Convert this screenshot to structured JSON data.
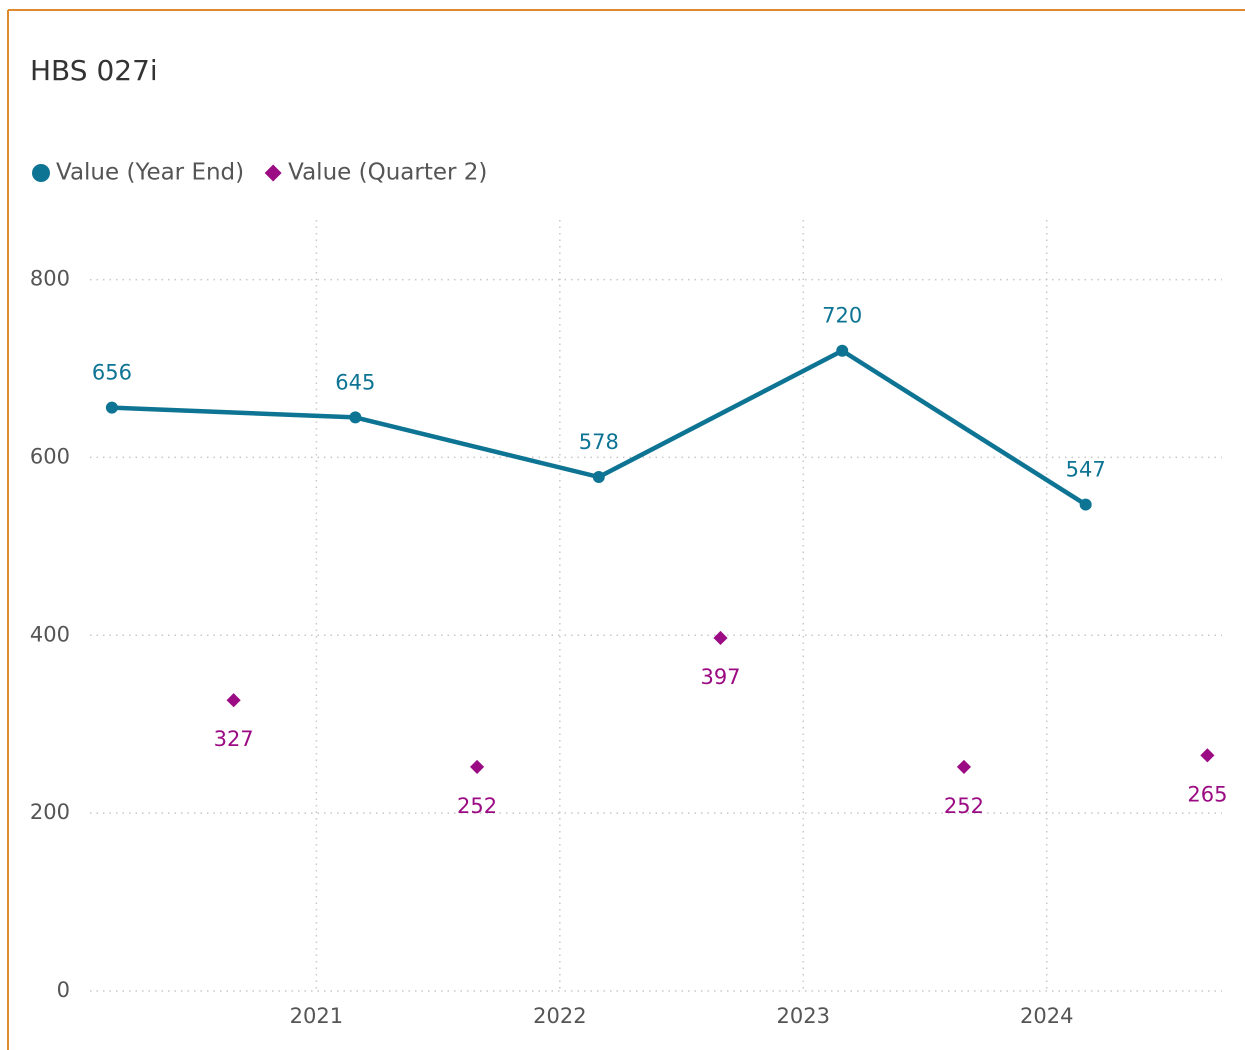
{
  "chart_data": {
    "type": "line",
    "title": "HBS 027i",
    "series": [
      {
        "name": "Value (Year End)",
        "color": "#0e7494",
        "marker": "circle",
        "line": true,
        "label_position": "above",
        "x": [
          2020.16,
          2021.16,
          2022.16,
          2023.16,
          2024.16
        ],
        "values": [
          656,
          645,
          578,
          720,
          547
        ]
      },
      {
        "name": "Value (Quarter 2)",
        "color": "#9b0b83",
        "marker": "diamond",
        "line": false,
        "label_position": "below",
        "x": [
          2020.66,
          2021.66,
          2022.66,
          2023.66,
          2024.66
        ],
        "values": [
          327,
          252,
          397,
          252,
          265
        ]
      }
    ],
    "xlim": [
      2020.07,
      2024.72
    ],
    "xticks": [
      2021,
      2022,
      2023,
      2024
    ],
    "ylim": [
      0,
      867
    ],
    "yticks": [
      0,
      200,
      400,
      600,
      800
    ],
    "grid": true
  }
}
